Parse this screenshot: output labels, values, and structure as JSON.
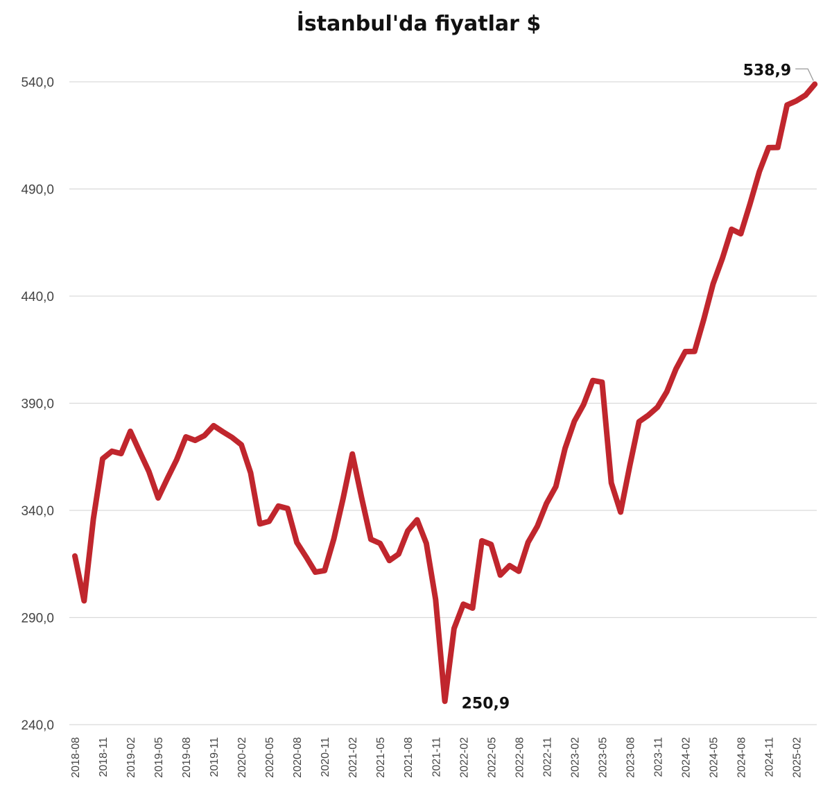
{
  "chart_data": {
    "type": "line",
    "title": "İstanbul'da  fiyatlar $",
    "xlabel": "",
    "ylabel": "",
    "ylim": [
      240,
      540
    ],
    "yticks": [
      "240,0",
      "290,0",
      "340,0",
      "390,0",
      "440,0",
      "490,0",
      "540,0"
    ],
    "ytick_values": [
      240,
      290,
      340,
      390,
      440,
      490,
      540
    ],
    "xticks": [
      "2018-08",
      "2018-11",
      "2019-02",
      "2019-05",
      "2019-08",
      "2019-11",
      "2020-02",
      "2020-05",
      "2020-08",
      "2020-11",
      "2021-02",
      "2021-05",
      "2021-08",
      "2021-11",
      "2022-02",
      "2022-05",
      "2022-08",
      "2022-11",
      "2023-02",
      "2023-05",
      "2023-08",
      "2023-11",
      "2024-02",
      "2024-05",
      "2024-08",
      "2024-11",
      "2025-02"
    ],
    "grid": true,
    "legend": "none",
    "series_color": "#c0262d",
    "x": [
      "2018-08",
      "2018-09",
      "2018-10",
      "2018-11",
      "2018-12",
      "2019-01",
      "2019-02",
      "2019-03",
      "2019-04",
      "2019-05",
      "2019-06",
      "2019-07",
      "2019-08",
      "2019-09",
      "2019-10",
      "2019-11",
      "2019-12",
      "2020-01",
      "2020-02",
      "2020-03",
      "2020-04",
      "2020-05",
      "2020-06",
      "2020-07",
      "2020-08",
      "2020-09",
      "2020-10",
      "2020-11",
      "2020-12",
      "2021-01",
      "2021-02",
      "2021-03",
      "2021-04",
      "2021-05",
      "2021-06",
      "2021-07",
      "2021-08",
      "2021-09",
      "2021-10",
      "2021-11",
      "2021-12",
      "2022-01",
      "2022-02",
      "2022-03",
      "2022-04",
      "2022-05",
      "2022-06",
      "2022-07",
      "2022-08",
      "2022-09",
      "2022-10",
      "2022-11",
      "2022-12",
      "2023-01",
      "2023-02",
      "2023-03",
      "2023-04",
      "2023-05",
      "2023-06",
      "2023-07",
      "2023-08",
      "2023-09",
      "2023-10",
      "2023-11",
      "2023-12",
      "2024-01",
      "2024-02",
      "2024-03",
      "2024-04",
      "2024-05",
      "2024-06",
      "2024-07",
      "2024-08",
      "2024-09",
      "2024-10",
      "2024-11",
      "2024-12",
      "2025-01",
      "2025-02",
      "2025-03",
      "2025-04"
    ],
    "series": [
      {
        "values": [
          318.7,
          297.8,
          336.1,
          364.1,
          367.6,
          366.5,
          376.9,
          367.4,
          358.2,
          345.8,
          354.9,
          363.6,
          374.3,
          372.7,
          374.9,
          379.5,
          376.7,
          374.0,
          370.6,
          357.5,
          333.7,
          334.9,
          342.0,
          340.9,
          325.0,
          318.3,
          311.2,
          311.9,
          326.7,
          345.6,
          366.3,
          346.0,
          326.5,
          324.6,
          316.6,
          319.6,
          330.5,
          335.6,
          324.6,
          298.4,
          250.9,
          284.9,
          296.2,
          294.4,
          325.8,
          324.1,
          309.8,
          314.2,
          311.6,
          325.1,
          332.6,
          343.3,
          351.1,
          368.9,
          381.6,
          389.4,
          400.6,
          399.8,
          352.8,
          339.2,
          360.9,
          381.4,
          384.4,
          388.2,
          395.4,
          406.1,
          414.1,
          414.2,
          429.2,
          445.7,
          457.5,
          471.2,
          469.1,
          483.1,
          498.1,
          509.3,
          509.4,
          529.2,
          531.1,
          533.8,
          538.9
        ]
      }
    ],
    "annotations": [
      {
        "text": "250,9",
        "x": "2021-12",
        "y": 250.9
      },
      {
        "text": "538,9",
        "x": "2025-04",
        "y": 538.9
      }
    ]
  }
}
